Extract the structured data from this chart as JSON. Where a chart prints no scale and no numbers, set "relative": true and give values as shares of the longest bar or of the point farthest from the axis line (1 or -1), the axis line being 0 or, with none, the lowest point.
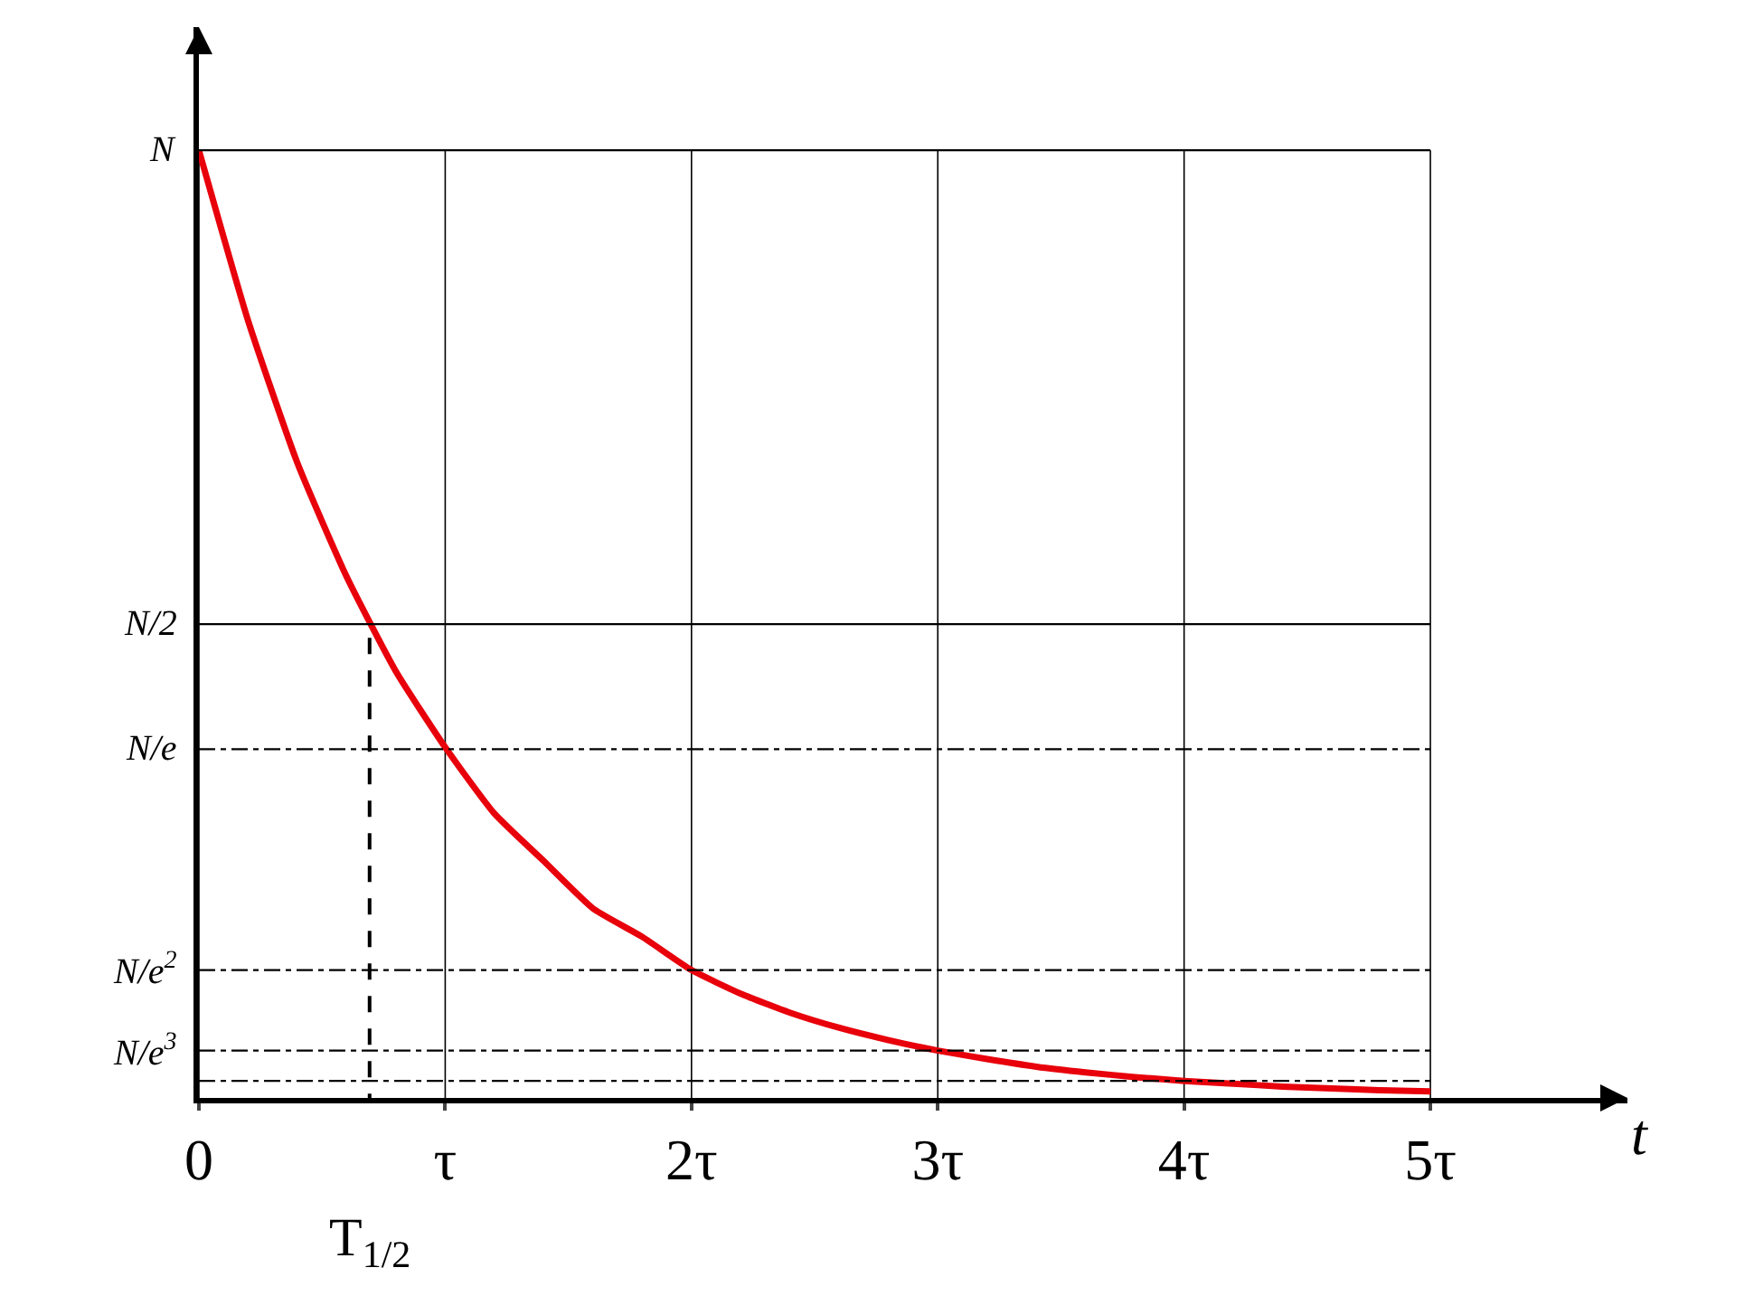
{
  "chart_data": {
    "type": "line",
    "xlabel": "t",
    "x": [
      0,
      0.2,
      0.4,
      0.6,
      0.8,
      1,
      1.2,
      1.4,
      1.6,
      1.8,
      2,
      2.2,
      2.4,
      2.6,
      2.8,
      3,
      3.2,
      3.4,
      3.6,
      3.8,
      4,
      4.2,
      4.4,
      4.6,
      4.8,
      5
    ],
    "series": [
      {
        "color": "#e8000b",
        "values": [
          1,
          0.82,
          0.67,
          0.55,
          0.45,
          0.37,
          0.3,
          0.25,
          0.2,
          0.17,
          0.135,
          0.11,
          0.09,
          0.074,
          0.061,
          0.05,
          0.041,
          0.033,
          0.027,
          0.022,
          0.018,
          0.015,
          0.012,
          0.01,
          0.008,
          0.007
        ]
      }
    ],
    "xlim": [
      0,
      5.8
    ],
    "relative": true,
    "xticks": [
      {
        "value": 0,
        "label": "0"
      },
      {
        "value": 1,
        "label": "τ"
      },
      {
        "value": 2,
        "label": "2τ"
      },
      {
        "value": 3,
        "label": "3τ"
      },
      {
        "value": 4,
        "label": "4τ"
      },
      {
        "value": 5,
        "label": "5τ"
      }
    ],
    "grid": "x",
    "ref_lines": [
      {
        "axis": "y",
        "value": 1,
        "label": "N",
        "line_style": "solid"
      },
      {
        "axis": "y",
        "value": 0.5,
        "label": "N/2",
        "line_style": "solid"
      },
      {
        "axis": "y",
        "value": 0.368,
        "label": "N/e",
        "line_style": "dashdot"
      },
      {
        "axis": "y",
        "value": 0.135,
        "label": "N/e$^{2}$",
        "line_style": "dashdot"
      },
      {
        "axis": "y",
        "value": 0.05,
        "label": "N/e$^{3}$",
        "line_style": "dashdot"
      },
      {
        "axis": "y",
        "value": 0.018,
        "label": null,
        "line_style": "dashdot"
      },
      {
        "axis": "x",
        "value": 0.693,
        "label": "T$_{1/2}$",
        "line_style": "dashed"
      }
    ],
    "line_style": "solid",
    "legend": false
  }
}
